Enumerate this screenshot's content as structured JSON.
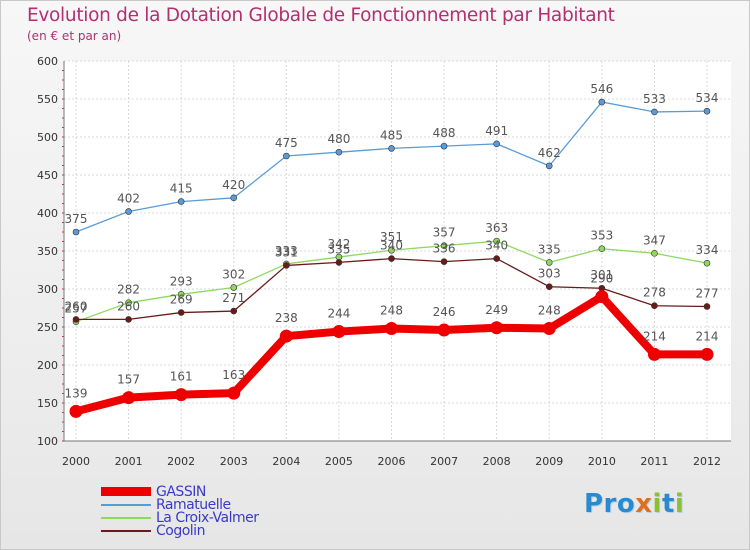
{
  "header": {
    "title": "Evolution de la Dotation Globale de Fonctionnement par Habitant",
    "subtitle": "(en € et par an)"
  },
  "logo": {
    "p1": "Pro",
    "x": "x",
    "i": "i",
    "p2": "t",
    "i2": "i"
  },
  "chart_data": {
    "type": "line",
    "title": "Evolution de la Dotation Globale de Fonctionnement par Habitant",
    "subtitle": "(en € et par an)",
    "xlabel": "",
    "ylabel": "",
    "ylim": [
      100,
      600
    ],
    "yticks": [
      100,
      150,
      200,
      250,
      300,
      350,
      400,
      450,
      500,
      550,
      600
    ],
    "categories": [
      "2000",
      "2001",
      "2002",
      "2003",
      "2004",
      "2005",
      "2006",
      "2007",
      "2008",
      "2009",
      "2010",
      "2011",
      "2012"
    ],
    "legend_position": "bottom-left",
    "series": [
      {
        "name": "GASSIN",
        "color": "#ee0000",
        "values": [
          139,
          157,
          161,
          163,
          238,
          244,
          248,
          246,
          249,
          248,
          290,
          214,
          214
        ]
      },
      {
        "name": "Ramatuelle",
        "color": "#5b9bd5",
        "values": [
          375,
          402,
          415,
          420,
          475,
          480,
          485,
          488,
          491,
          462,
          546,
          533,
          534
        ]
      },
      {
        "name": "La Croix-Valmer",
        "color": "#8ed860",
        "values": [
          257,
          282,
          293,
          302,
          333,
          342,
          351,
          357,
          363,
          335,
          353,
          347,
          334
        ]
      },
      {
        "name": "Cogolin",
        "color": "#6b1a1a",
        "values": [
          260,
          260,
          269,
          271,
          331,
          335,
          340,
          336,
          340,
          303,
          301,
          278,
          277
        ]
      }
    ]
  }
}
